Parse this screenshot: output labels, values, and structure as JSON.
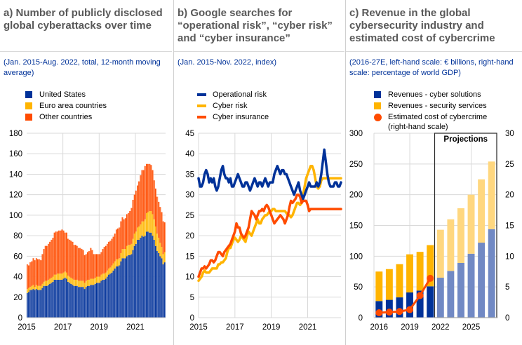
{
  "colors": {
    "us": "#003299",
    "euro": "#FFB400",
    "other": "#FF4B00",
    "projection_blue": "#7189C4",
    "projection_yellow": "#FFD77F",
    "title": "#595959",
    "subtitle": "#003299"
  },
  "panel_a": {
    "title": "a) Number of publicly disclosed global cyberattacks over time",
    "subtitle": "(Jan. 2015-Aug. 2022, total, 12-month moving average)",
    "legend": [
      {
        "label": "United States",
        "color": "#003299"
      },
      {
        "label": "Euro area countries",
        "color": "#FFB400"
      },
      {
        "label": "Other countries",
        "color": "#FF4B00"
      }
    ]
  },
  "panel_b": {
    "title": "b) Google searches for “operational risk”, “cyber risk” and “cyber insurance”",
    "subtitle": "(Jan. 2015-Nov. 2022, index)",
    "legend": [
      {
        "label": "Operational risk",
        "color": "#003299"
      },
      {
        "label": "Cyber risk",
        "color": "#FFB400"
      },
      {
        "label": "Cyber insurance",
        "color": "#FF4B00"
      }
    ]
  },
  "panel_c": {
    "title": "c) Revenue in the global cybersecurity industry and estimated cost of cybercrime",
    "subtitle": "(2016-27E, left-hand scale: € billions, right-hand scale: percentage of world GDP)",
    "legend": [
      {
        "label": "Revenues - cyber solutions",
        "color": "#003299",
        "shape": "square"
      },
      {
        "label": "Revenues - security services",
        "color": "#FFB400",
        "shape": "square"
      },
      {
        "label": "Estimated cost of cybercrime",
        "color": "#FF4B00",
        "shape": "dot"
      },
      {
        "label": "(right-hand scale)",
        "color": "",
        "shape": "none"
      }
    ],
    "projection_label": "Projections"
  },
  "chart_data": [
    {
      "type": "bar",
      "stacked": true,
      "title": "a) Number of publicly disclosed global cyberattacks over time",
      "subtitle": "(Jan. 2015-Aug. 2022, total, 12-month moving average)",
      "x_start": "2015-01",
      "x_end": "2022-08",
      "frequency": "monthly",
      "xticks": [
        "2015",
        "2017",
        "2019",
        "2021"
      ],
      "ylim": [
        0,
        180
      ],
      "yticks": [
        0,
        20,
        40,
        60,
        80,
        100,
        120,
        140,
        160,
        180
      ],
      "grid": true,
      "legend_position": "top-left",
      "series": [
        {
          "name": "United States",
          "values": [
            24,
            25,
            27,
            27,
            28,
            27,
            28,
            27,
            27,
            27,
            29,
            31,
            31,
            31,
            32,
            33,
            34,
            35,
            37,
            37,
            37,
            37,
            37,
            37,
            38,
            39,
            38,
            35,
            34,
            33,
            32,
            31,
            31,
            31,
            30,
            30,
            30,
            30,
            28,
            30,
            31,
            31,
            32,
            32,
            32,
            33,
            34,
            34,
            34,
            36,
            37,
            37,
            38,
            40,
            42,
            43,
            44,
            46,
            48,
            50,
            50,
            51,
            55,
            58,
            58,
            58,
            60,
            61,
            61,
            62,
            66,
            70,
            72,
            76,
            76,
            78,
            80,
            79,
            80,
            84,
            84,
            83,
            83,
            80,
            76,
            70,
            65,
            63,
            60,
            58,
            52,
            54
          ]
        },
        {
          "name": "Euro area countries",
          "values": [
            4,
            4,
            3,
            4,
            4,
            3,
            4,
            4,
            4,
            4,
            4,
            4,
            5,
            5,
            5,
            5,
            5,
            5,
            5,
            5,
            6,
            6,
            6,
            6,
            6,
            6,
            6,
            6,
            6,
            6,
            6,
            6,
            6,
            6,
            6,
            6,
            6,
            6,
            6,
            6,
            6,
            6,
            6,
            6,
            6,
            6,
            6,
            6,
            6,
            6,
            6,
            6,
            6,
            6,
            6,
            6,
            7,
            7,
            7,
            7,
            7,
            7,
            8,
            9,
            9,
            9,
            10,
            10,
            10,
            10,
            11,
            12,
            12,
            12,
            13,
            13,
            14,
            15,
            16,
            18,
            19,
            21,
            21,
            21,
            20,
            19,
            17,
            15,
            13,
            11,
            10,
            10
          ]
        },
        {
          "name": "Other countries",
          "values": [
            24,
            22,
            24,
            24,
            26,
            26,
            26,
            26,
            26,
            25,
            29,
            32,
            34,
            34,
            35,
            36,
            37,
            38,
            41,
            42,
            41,
            42,
            42,
            43,
            41,
            38,
            39,
            36,
            36,
            36,
            36,
            34,
            34,
            33,
            32,
            32,
            31,
            30,
            27,
            26,
            27,
            28,
            30,
            28,
            24,
            23,
            22,
            22,
            22,
            22,
            24,
            26,
            26,
            26,
            26,
            26,
            26,
            26,
            27,
            29,
            30,
            30,
            31,
            31,
            29,
            30,
            31,
            31,
            33,
            35,
            38,
            38,
            40,
            41,
            44,
            48,
            50,
            50,
            52,
            48,
            47,
            46,
            45,
            43,
            38,
            37,
            36,
            35,
            35,
            34,
            32,
            29
          ]
        }
      ]
    },
    {
      "type": "line",
      "title": "b) Google searches for “operational risk”, “cyber risk” and “cyber insurance”",
      "subtitle": "(Jan. 2015-Nov. 2022, index)",
      "x_start": "2015-01",
      "x_end": "2022-11",
      "frequency": "monthly",
      "xticks": [
        "2015",
        "2017",
        "2019",
        "2021"
      ],
      "ylim": [
        0,
        45
      ],
      "yticks": [
        0,
        5,
        10,
        15,
        20,
        25,
        30,
        35,
        40,
        45
      ],
      "grid": true,
      "legend_position": "top-left",
      "series": [
        {
          "name": "Operational risk",
          "values": [
            34,
            32,
            32,
            33,
            35,
            36,
            35,
            33,
            34,
            33,
            34,
            32,
            31,
            32,
            34,
            36,
            37,
            35,
            34,
            34,
            33,
            34,
            32,
            32,
            33,
            34,
            35,
            34,
            33,
            32,
            32,
            33,
            33,
            32,
            31,
            32,
            33,
            34,
            33,
            32,
            33,
            33,
            32,
            33,
            34,
            33,
            32,
            33,
            33,
            33,
            35,
            36,
            37,
            36,
            35,
            36,
            36,
            35,
            35,
            34,
            33,
            32,
            31,
            30,
            31,
            32,
            33,
            31,
            30,
            29,
            30,
            31,
            32,
            33,
            32,
            32,
            32,
            32,
            33,
            32,
            33,
            35,
            38,
            41,
            38,
            35,
            33,
            32,
            32,
            32,
            33,
            33,
            32,
            32,
            33
          ]
        },
        {
          "name": "Cyber risk",
          "values": [
            9,
            9.5,
            10,
            11,
            11.5,
            11,
            11,
            11,
            11.5,
            12,
            12,
            12,
            12,
            13,
            13,
            13.5,
            13.5,
            14,
            14.5,
            16,
            17,
            17,
            18,
            19,
            19.5,
            19,
            18.5,
            19,
            20,
            19.5,
            19,
            18.5,
            20,
            21,
            20.5,
            20,
            21,
            22,
            23,
            24,
            23,
            23,
            24,
            24.5,
            25,
            25,
            25.5,
            26,
            26,
            26.5,
            26.5,
            26,
            26,
            26,
            26,
            26,
            26,
            26,
            25.5,
            25,
            25,
            24.5,
            25,
            26,
            27,
            28,
            28,
            27.5,
            28,
            30,
            32,
            34,
            35,
            36,
            37,
            37,
            36,
            34,
            32,
            31.5,
            32,
            33.5,
            34,
            34,
            34,
            34,
            34,
            34,
            34,
            34,
            34,
            34,
            34,
            34,
            34
          ]
        },
        {
          "name": "Cyber insurance",
          "values": [
            10,
            11,
            12,
            12,
            12.5,
            12,
            12.5,
            13,
            14,
            14,
            13.5,
            14,
            15,
            16,
            16,
            15.5,
            15,
            16,
            16.5,
            17,
            17.5,
            18,
            19,
            20,
            21,
            23,
            22,
            22,
            20.5,
            20,
            19.5,
            20,
            21,
            22,
            24,
            26,
            25.5,
            25,
            24,
            25,
            26,
            26,
            26.5,
            26,
            27,
            27.5,
            27,
            26,
            25,
            24,
            23,
            23.5,
            24,
            24.5,
            25,
            24.5,
            24,
            23,
            24,
            25,
            27,
            28.5,
            28,
            28.5,
            29,
            30,
            30,
            29.5,
            28,
            28.5,
            28.5,
            28.5,
            27.5,
            26,
            26.5,
            26.5,
            26.5,
            26.5,
            26.5,
            26.5,
            26.5,
            26.5,
            26.5,
            26.5,
            26.5,
            26.5,
            26.5,
            26.5,
            26.5,
            26.5,
            26.5,
            26.5,
            26.5,
            26.5,
            26.5
          ]
        }
      ]
    },
    {
      "type": "bar",
      "stacked": true,
      "title": "c) Revenue in the global cybersecurity industry and estimated cost of cybercrime",
      "subtitle": "(2016-27E, left-hand scale: € billions, right-hand scale: percentage of world GDP)",
      "categories": [
        "2016",
        "2017",
        "2018",
        "2019",
        "2020",
        "2021",
        "2022",
        "2023",
        "2024",
        "2025",
        "2026",
        "2027"
      ],
      "xticks": [
        "2016",
        "2019",
        "2022",
        "2025"
      ],
      "ylim_left": [
        0,
        300
      ],
      "yticks_left": [
        0,
        50,
        100,
        150,
        200,
        250,
        300
      ],
      "ylim_right": [
        0,
        30
      ],
      "yticks_right": [
        0,
        5,
        10,
        15,
        20,
        25,
        30
      ],
      "projection_start": "2022",
      "projection_label": "Projections",
      "grid": true,
      "legend_position": "top-left",
      "series": [
        {
          "name": "Revenues - cyber solutions",
          "axis": "left",
          "values": [
            27,
            29,
            33,
            41,
            44,
            51,
            65,
            76,
            89,
            104,
            122,
            144
          ]
        },
        {
          "name": "Revenues - security services",
          "axis": "left",
          "values": [
            48,
            50,
            54,
            62,
            63,
            67,
            78,
            84,
            89,
            96,
            103,
            110
          ]
        },
        {
          "name": "Estimated cost of cybercrime (right-hand scale)",
          "axis": "right",
          "type": "line",
          "values": [
            0.8,
            0.9,
            1.0,
            1.3,
            3.6,
            6.4,
            null,
            null,
            null,
            null,
            null,
            null
          ]
        }
      ]
    }
  ]
}
